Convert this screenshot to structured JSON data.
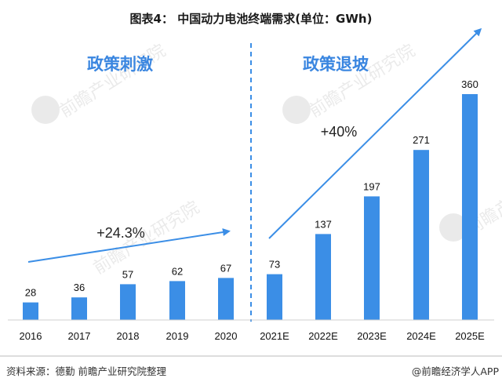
{
  "title": "图表4：  中国动力电池终端需求(单位：GWh)",
  "chart_data": {
    "type": "bar",
    "categories": [
      "2016",
      "2017",
      "2018",
      "2019",
      "2020",
      "2021E",
      "2022E",
      "2023E",
      "2024E",
      "2025E"
    ],
    "values": [
      28,
      36,
      57,
      62,
      67,
      73,
      137,
      197,
      271,
      360
    ],
    "ylim": [
      0,
      375
    ],
    "grid": false,
    "bar_color": "#3b8ee6",
    "sections": [
      {
        "label": "政策刺激",
        "growth": "+24.3%"
      },
      {
        "label": "政策退坡",
        "growth": "+40%"
      }
    ]
  },
  "watermark": "前瞻产业研究院",
  "footer": {
    "source": "资料来源：德勤 前瞻产业研究院整理",
    "brand": "@前瞻经济学人APP"
  },
  "colors": {
    "bar": "#3b8ee6",
    "arrow": "#3b8ee6",
    "divider": "#3b8ee6",
    "section_label": "#3a86e0"
  }
}
